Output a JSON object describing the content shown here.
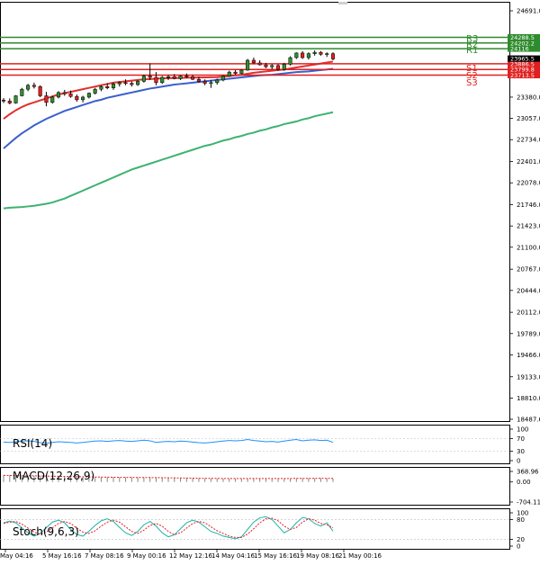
{
  "chart_data": {
    "type": "candlestick",
    "main": {
      "y_range": [
        18487.65,
        24691.0
      ],
      "y_ticks": [
        "24691.0",
        "23380.0",
        "23057.0",
        "22734.0",
        "22401.0",
        "22078.0",
        "21746.0",
        "21423.0",
        "21100.0",
        "20767.0",
        "20444.0",
        "20112.0",
        "19789.0",
        "19466.0",
        "19133.0",
        "18810.0",
        "18487.65"
      ],
      "x_labels": [
        "May 04:16",
        "5 May 16:16",
        "7 May 08:16",
        "9 May 00:16",
        "12 May 12:16",
        "14 May 04:16",
        "15 May 16:16",
        "19 May 08:16",
        "21 May 00:16"
      ],
      "resistance": [
        {
          "name": "R3",
          "value": 24288.5,
          "color": "#2e8b2e"
        },
        {
          "name": "R2",
          "value": 24202.2,
          "color": "#2e8b2e"
        },
        {
          "name": "R1",
          "value": 24116.0,
          "color": "#2e8b2e"
        }
      ],
      "support": [
        {
          "name": "S1",
          "value": 23886.5,
          "color": "#e02020"
        },
        {
          "name": "S2",
          "value": 23799.8,
          "color": "#e02020"
        },
        {
          "name": "S3",
          "value": 23713.5,
          "color": "#e02020"
        }
      ],
      "current_price": "23965.5",
      "candles": [
        [
          23335,
          23365,
          23290,
          23320
        ],
        [
          23320,
          23360,
          23270,
          23290
        ],
        [
          23290,
          23410,
          23280,
          23400
        ],
        [
          23400,
          23520,
          23390,
          23500
        ],
        [
          23500,
          23580,
          23470,
          23560
        ],
        [
          23560,
          23600,
          23510,
          23540
        ],
        [
          23540,
          23560,
          23380,
          23400
        ],
        [
          23400,
          23460,
          23240,
          23300
        ],
        [
          23300,
          23400,
          23280,
          23380
        ],
        [
          23380,
          23470,
          23360,
          23450
        ],
        [
          23450,
          23490,
          23400,
          23430
        ],
        [
          23430,
          23480,
          23370,
          23390
        ],
        [
          23390,
          23420,
          23310,
          23340
        ],
        [
          23340,
          23400,
          23300,
          23380
        ],
        [
          23380,
          23450,
          23360,
          23440
        ],
        [
          23440,
          23520,
          23420,
          23500
        ],
        [
          23500,
          23560,
          23470,
          23540
        ],
        [
          23540,
          23590,
          23500,
          23520
        ],
        [
          23520,
          23600,
          23490,
          23580
        ],
        [
          23580,
          23620,
          23540,
          23600
        ],
        [
          23600,
          23650,
          23560,
          23590
        ],
        [
          23590,
          23620,
          23540,
          23570
        ],
        [
          23570,
          23640,
          23550,
          23620
        ],
        [
          23620,
          23720,
          23600,
          23700
        ],
        [
          23700,
          23890,
          23640,
          23680
        ],
        [
          23680,
          23760,
          23560,
          23600
        ],
        [
          23600,
          23700,
          23580,
          23680
        ],
        [
          23680,
          23720,
          23640,
          23690
        ],
        [
          23690,
          23730,
          23650,
          23660
        ],
        [
          23660,
          23710,
          23640,
          23700
        ],
        [
          23700,
          23740,
          23670,
          23690
        ],
        [
          23690,
          23720,
          23640,
          23650
        ],
        [
          23650,
          23690,
          23600,
          23620
        ],
        [
          23620,
          23650,
          23560,
          23590
        ],
        [
          23590,
          23640,
          23520,
          23600
        ],
        [
          23600,
          23660,
          23570,
          23640
        ],
        [
          23640,
          23710,
          23620,
          23700
        ],
        [
          23700,
          23780,
          23690,
          23760
        ],
        [
          23760,
          23790,
          23720,
          23740
        ],
        [
          23740,
          23800,
          23730,
          23790
        ],
        [
          23790,
          23960,
          23780,
          23940
        ],
        [
          23940,
          23980,
          23880,
          23900
        ],
        [
          23900,
          23940,
          23860,
          23870
        ],
        [
          23870,
          23900,
          23820,
          23840
        ],
        [
          23840,
          23880,
          23800,
          23860
        ],
        [
          23860,
          23880,
          23780,
          23800
        ],
        [
          23800,
          23900,
          23780,
          23880
        ],
        [
          23880,
          24000,
          23860,
          23980
        ],
        [
          23980,
          24060,
          23960,
          24050
        ],
        [
          24050,
          24080,
          23960,
          23980
        ],
        [
          23980,
          24060,
          23950,
          24040
        ],
        [
          24040,
          24090,
          24010,
          24060
        ],
        [
          24060,
          24080,
          24010,
          24030
        ],
        [
          24030,
          24060,
          23990,
          24040
        ],
        [
          24040,
          24060,
          23940,
          23960
        ]
      ],
      "ma_fast": [
        23050,
        23120,
        23180,
        23230,
        23270,
        23300,
        23330,
        23360,
        23390,
        23420,
        23440,
        23460,
        23480,
        23500,
        23520,
        23540,
        23560,
        23580,
        23600,
        23610,
        23620,
        23630,
        23640,
        23650,
        23655,
        23660,
        23665,
        23668,
        23670,
        23672,
        23674,
        23676,
        23678,
        23680,
        23682,
        23684,
        23690,
        23700,
        23710,
        23720,
        23735,
        23750,
        23760,
        23770,
        23780,
        23790,
        23800,
        23815,
        23830,
        23845,
        23860,
        23875,
        23890,
        23905,
        23920
      ],
      "ma_mid": [
        22600,
        22680,
        22760,
        22830,
        22890,
        22950,
        23000,
        23050,
        23090,
        23130,
        23170,
        23200,
        23230,
        23260,
        23290,
        23320,
        23340,
        23370,
        23390,
        23410,
        23430,
        23450,
        23470,
        23490,
        23510,
        23525,
        23540,
        23555,
        23570,
        23580,
        23590,
        23600,
        23610,
        23620,
        23630,
        23640,
        23650,
        23660,
        23670,
        23680,
        23690,
        23700,
        23710,
        23715,
        23720,
        23730,
        23740,
        23750,
        23760,
        23765,
        23770,
        23780,
        23790,
        23800,
        23810
      ],
      "ma_slow": [
        21690,
        21700,
        21705,
        21710,
        21720,
        21730,
        21745,
        21760,
        21780,
        21810,
        21840,
        21880,
        21920,
        21960,
        22000,
        22040,
        22080,
        22120,
        22160,
        22200,
        22240,
        22280,
        22310,
        22340,
        22370,
        22400,
        22430,
        22460,
        22490,
        22520,
        22550,
        22580,
        22610,
        22640,
        22660,
        22690,
        22720,
        22740,
        22770,
        22790,
        22820,
        22840,
        22870,
        22890,
        22920,
        22940,
        22970,
        22990,
        23010,
        23040,
        23060,
        23090,
        23110,
        23130,
        23150
      ]
    },
    "rsi": {
      "label": "RSI(14)",
      "y_ticks": [
        "100",
        "70",
        "30",
        "0"
      ],
      "values": [
        59,
        58,
        60,
        62,
        63,
        61,
        57,
        55,
        58,
        60,
        59,
        58,
        56,
        58,
        60,
        62,
        63,
        61,
        63,
        64,
        62,
        61,
        63,
        65,
        63,
        58,
        60,
        61,
        60,
        62,
        61,
        59,
        57,
        56,
        58,
        60,
        62,
        64,
        63,
        64,
        67,
        64,
        62,
        60,
        61,
        59,
        62,
        65,
        67,
        63,
        65,
        66,
        64,
        65,
        58
      ]
    },
    "macd": {
      "label": "MACD(12,26,9)",
      "y_ticks": [
        "368.96",
        "0.00",
        "-704.11"
      ],
      "hist": [
        240,
        236,
        232,
        228,
        224,
        220,
        214,
        208,
        204,
        200,
        196,
        192,
        188,
        184,
        180,
        176,
        172,
        168,
        166,
        164,
        162,
        160,
        158,
        156,
        156,
        154,
        150,
        146,
        142,
        138,
        134,
        130,
        126,
        122,
        120,
        118,
        116,
        116,
        116,
        118,
        120,
        122,
        122,
        122,
        122,
        120,
        120,
        122,
        124,
        126,
        128,
        128,
        128,
        126,
        122
      ],
      "signal": [
        230,
        228,
        226,
        222,
        218,
        214,
        210,
        206,
        202,
        198,
        194,
        190,
        186,
        182,
        178,
        174,
        170,
        167,
        164,
        162,
        160,
        158,
        156,
        155,
        154,
        152,
        149,
        146,
        143,
        140,
        136,
        133,
        130,
        127,
        125,
        123,
        121,
        120,
        119,
        119,
        120,
        121,
        121,
        121,
        121,
        121,
        121,
        122,
        123,
        124,
        125,
        126,
        127,
        126,
        125
      ]
    },
    "stoch": {
      "label": "Stoch(9,6,3)",
      "y_ticks": [
        "100",
        "80",
        "20",
        "0"
      ],
      "k": [
        70,
        75,
        70,
        55,
        40,
        30,
        38,
        55,
        72,
        78,
        70,
        50,
        35,
        30,
        45,
        62,
        76,
        82,
        74,
        56,
        40,
        32,
        44,
        64,
        74,
        60,
        40,
        28,
        34,
        52,
        70,
        78,
        72,
        58,
        44,
        38,
        30,
        26,
        22,
        28,
        50,
        72,
        85,
        88,
        80,
        60,
        40,
        50,
        70,
        86,
        82,
        68,
        60,
        70,
        45
      ],
      "d": [
        68,
        72,
        74,
        66,
        54,
        42,
        36,
        42,
        55,
        68,
        74,
        68,
        54,
        42,
        38,
        46,
        60,
        72,
        78,
        72,
        58,
        44,
        38,
        48,
        62,
        68,
        60,
        44,
        34,
        40,
        54,
        68,
        74,
        70,
        58,
        46,
        38,
        30,
        26,
        26,
        36,
        52,
        70,
        82,
        84,
        76,
        60,
        50,
        56,
        72,
        82,
        78,
        68,
        64,
        55
      ]
    }
  }
}
